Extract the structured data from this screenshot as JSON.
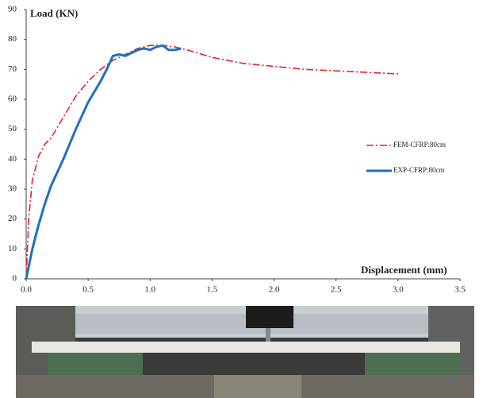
{
  "chart_data": {
    "type": "line",
    "y_label": "Load (KN)",
    "x_label": "Displacement (mm)",
    "xlim": [
      0,
      3.5
    ],
    "xticks": [
      {
        "value": 0,
        "label": "0.0"
      },
      {
        "value": 0.5,
        "label": "0.5"
      },
      {
        "value": 1,
        "label": "1.0"
      },
      {
        "value": 1.5,
        "label": "1.5"
      },
      {
        "value": 2,
        "label": "2.0"
      },
      {
        "value": 2.5,
        "label": "2.5"
      },
      {
        "value": 3,
        "label": "3.0"
      },
      {
        "value": 3.5,
        "label": "3.5"
      }
    ],
    "ylim": [
      0,
      90
    ],
    "yticks": [
      0,
      10,
      20,
      30,
      40,
      50,
      60,
      70,
      80,
      90
    ],
    "grid": false,
    "series": [
      {
        "name": "FEM-CFRP:80cm",
        "color": "#e8212a",
        "line_style": "dash-dot",
        "x": [
          0,
          0.02,
          0.05,
          0.1,
          0.15,
          0.2,
          0.3,
          0.4,
          0.5,
          0.6,
          0.7,
          0.8,
          0.9,
          1.0,
          1.1,
          1.2,
          1.3,
          1.5,
          1.75,
          2.0,
          2.25,
          2.5,
          2.75,
          3.0
        ],
        "values": [
          0,
          20,
          33,
          41,
          45,
          47,
          54,
          61,
          66,
          70,
          73,
          75,
          77,
          78,
          78,
          77.5,
          76.5,
          74,
          72,
          71,
          70,
          69.5,
          69,
          68.5
        ]
      },
      {
        "name": "EXP-CFRP:80cm",
        "color": "#1f6fc0",
        "line_style": "solid",
        "x": [
          0,
          0.05,
          0.1,
          0.15,
          0.2,
          0.3,
          0.4,
          0.5,
          0.6,
          0.65,
          0.7,
          0.75,
          0.8,
          0.85,
          0.9,
          0.95,
          1.0,
          1.05,
          1.1,
          1.15,
          1.2,
          1.25
        ],
        "values": [
          0,
          10,
          18,
          25,
          31,
          40,
          50,
          59,
          66,
          70,
          74.5,
          75,
          74.5,
          75.5,
          76.5,
          77,
          76.5,
          77.5,
          78,
          76.5,
          76.5,
          77
        ]
      }
    ]
  }
}
